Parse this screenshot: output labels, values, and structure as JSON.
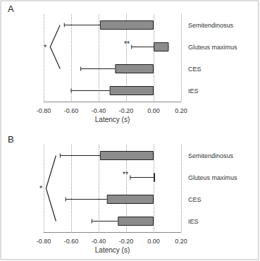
{
  "chart_data": [
    {
      "type": "bar",
      "title": "A",
      "orientation": "horizontal",
      "categories": [
        "Semitendinosus",
        "Gluteus maximus",
        "CES",
        "IES"
      ],
      "values": [
        -0.39,
        0.11,
        -0.28,
        -0.32
      ],
      "errors": [
        0.26,
        0.27,
        0.25,
        0.28
      ],
      "color": "#8c8c8c",
      "xlabel": "Latency (s)",
      "xlim": [
        -0.8,
        0.2
      ],
      "xticks": [
        {
          "value": -0.8,
          "label": "-0.80"
        },
        {
          "value": -0.6,
          "label": "-0.60"
        },
        {
          "value": -0.4,
          "label": "-0.40"
        },
        {
          "value": -0.2,
          "label": "-0.20"
        },
        {
          "value": 0,
          "label": "0.00"
        },
        {
          "value": 0.2,
          "label": "0.20"
        }
      ],
      "grid": true,
      "annotations": [
        {
          "text": "*",
          "from": "Semitendinosus",
          "to": "CES"
        },
        {
          "text": "**",
          "category": "Gluteus maximus"
        }
      ]
    },
    {
      "type": "bar",
      "title": "B",
      "orientation": "horizontal",
      "categories": [
        "Semitendinosus",
        "Gluteus maximus",
        "CES",
        "IES"
      ],
      "values": [
        -0.39,
        0.01,
        -0.34,
        -0.26
      ],
      "errors": [
        0.29,
        0.18,
        0.3,
        0.19
      ],
      "color": "#8c8c8c",
      "xlabel": "Latency (s)",
      "xlim": [
        -0.8,
        0.2
      ],
      "xticks": [
        {
          "value": -0.8,
          "label": "-0.80"
        },
        {
          "value": -0.6,
          "label": "-0.60"
        },
        {
          "value": -0.4,
          "label": "-0.40"
        },
        {
          "value": -0.2,
          "label": "-0.20"
        },
        {
          "value": 0,
          "label": "0.00"
        },
        {
          "value": 0.2,
          "label": "0.20"
        }
      ],
      "grid": true,
      "annotations": [
        {
          "text": "*",
          "from": "Semitendinosus",
          "to": "IES"
        },
        {
          "text": "**",
          "category": "Gluteus maximus"
        }
      ]
    }
  ]
}
